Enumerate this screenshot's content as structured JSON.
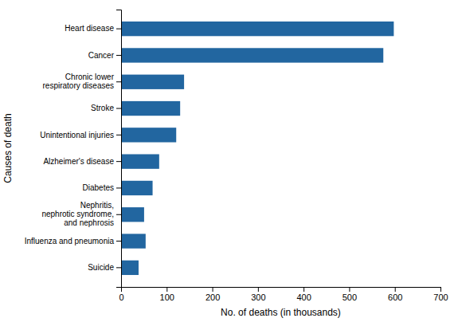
{
  "chart_data": {
    "type": "bar",
    "orientation": "horizontal",
    "categories": [
      "Suicide",
      "Influenza and pneumonia",
      "Nephritis,\nnephrotic syndrome,\nand nephrosis",
      "Diabetes",
      "Alzheimer's disease",
      "Unintentional injuries",
      "Stroke",
      "Chronic lower\nrespiratory diseases",
      "Cancer",
      "Heart disease"
    ],
    "values": [
      38.364,
      53.826,
      50.476,
      69.071,
      83.494,
      120.859,
      129.476,
      138.08,
      574.743,
      597.689
    ],
    "color": "#2266A0",
    "xlabel": "No. of deaths (in thousands)",
    "ylabel": "Causes of death",
    "xlim": [
      0,
      700
    ],
    "xticks": [
      0,
      100,
      200,
      300,
      400,
      500,
      600,
      700
    ],
    "grid": false
  }
}
